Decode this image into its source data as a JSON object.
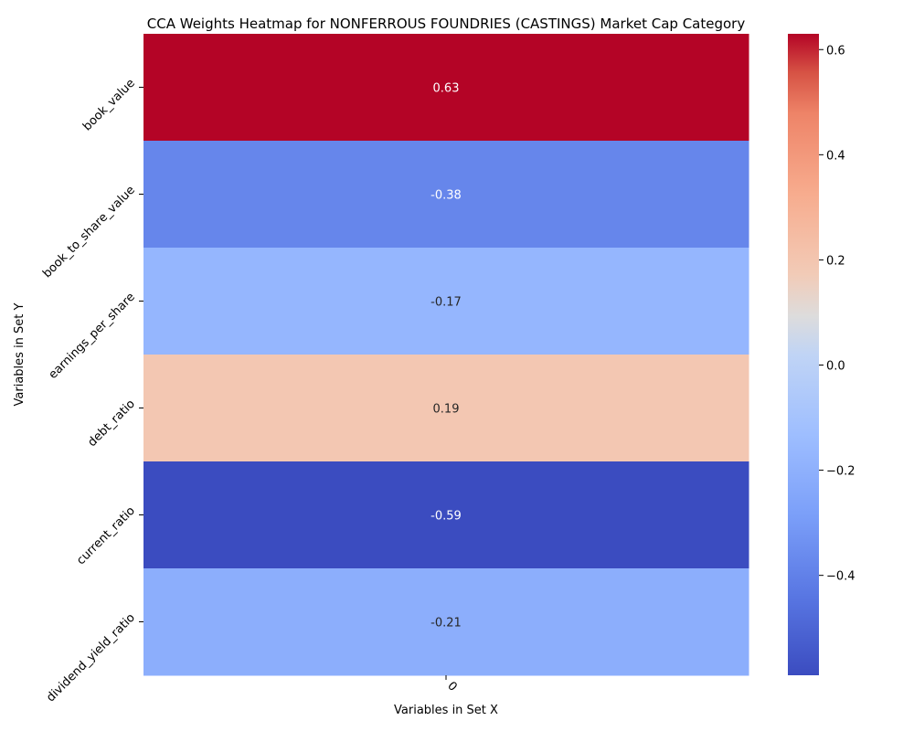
{
  "chart_data": {
    "type": "heatmap",
    "title": "CCA Weights Heatmap for NONFERROUS FOUNDRIES (CASTINGS) Market Cap Category",
    "xlabel": "Variables in Set X",
    "ylabel": "Variables in Set Y",
    "x_categories": [
      "0"
    ],
    "y_categories": [
      "book_value",
      "book_to_share_value",
      "earnings_per_share",
      "debt_ratio",
      "current_ratio",
      "dividend_yield_ratio"
    ],
    "values": [
      [
        0.63
      ],
      [
        -0.38
      ],
      [
        -0.17
      ],
      [
        0.19
      ],
      [
        -0.59
      ],
      [
        -0.21
      ]
    ],
    "cell_labels": [
      "0.63",
      "-0.38",
      "-0.17",
      "0.19",
      "-0.59",
      "-0.21"
    ],
    "colormap": "coolwarm",
    "vmin": -0.59,
    "vmax": 0.63,
    "colorbar_ticks": [
      0.6,
      0.4,
      0.2,
      0.0,
      -0.2,
      -0.4
    ],
    "colorbar_tick_labels": [
      "0.6",
      "0.4",
      "0.2",
      "0.0",
      "−0.2",
      "−0.4"
    ]
  }
}
